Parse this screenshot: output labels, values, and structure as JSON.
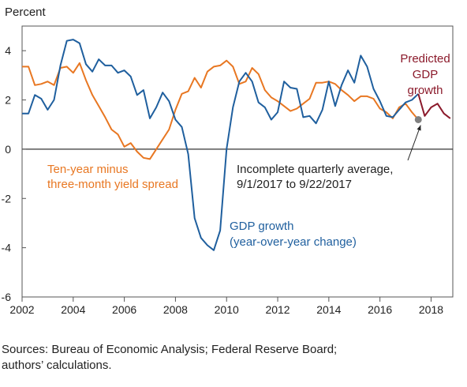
{
  "chart_data": {
    "type": "line",
    "ylabel": "Percent",
    "xlim": [
      2002.0,
      2018.85
    ],
    "ylim": [
      -6,
      5
    ],
    "yticks": [
      4,
      2,
      0,
      -2,
      -4,
      -6
    ],
    "ytick_labels": [
      "4",
      "2",
      "0",
      "-2",
      "-4",
      "-6"
    ],
    "xticks": [
      2002,
      2004,
      2006,
      2008,
      2010,
      2012,
      2014,
      2016,
      2018
    ],
    "xtick_labels": [
      "2002",
      "2004",
      "2006",
      "2008",
      "2010",
      "2012",
      "2014",
      "2016",
      "2018"
    ],
    "grid": false,
    "series": [
      {
        "name": "Ten-year minus three-month yield spread",
        "color": "#e87722",
        "x": [
          2002.0,
          2002.25,
          2002.5,
          2002.75,
          2003.0,
          2003.25,
          2003.5,
          2003.75,
          2004.0,
          2004.25,
          2004.5,
          2004.75,
          2005.0,
          2005.25,
          2005.5,
          2005.75,
          2006.0,
          2006.25,
          2006.5,
          2006.75,
          2007.0,
          2007.25,
          2007.5,
          2007.75,
          2008.0,
          2008.25,
          2008.5,
          2008.75,
          2009.0,
          2009.25,
          2009.5,
          2009.75,
          2010.0,
          2010.25,
          2010.5,
          2010.75,
          2011.0,
          2011.25,
          2011.5,
          2011.75,
          2012.0,
          2012.25,
          2012.5,
          2012.75,
          2013.0,
          2013.25,
          2013.5,
          2013.75,
          2014.0,
          2014.25,
          2014.5,
          2014.75,
          2015.0,
          2015.25,
          2015.5,
          2015.75,
          2016.0,
          2016.25,
          2016.5,
          2016.75,
          2017.0,
          2017.25,
          2017.5
        ],
        "values": [
          3.35,
          3.35,
          2.6,
          2.65,
          2.75,
          2.6,
          3.3,
          3.35,
          3.1,
          3.5,
          2.8,
          2.2,
          1.75,
          1.3,
          0.8,
          0.6,
          0.1,
          0.25,
          -0.1,
          -0.35,
          -0.4,
          0.0,
          0.4,
          0.8,
          1.6,
          2.25,
          2.35,
          2.9,
          2.5,
          3.15,
          3.35,
          3.4,
          3.6,
          3.35,
          2.65,
          2.75,
          3.3,
          3.05,
          2.4,
          2.1,
          1.95,
          1.75,
          1.55,
          1.65,
          1.85,
          2.05,
          2.7,
          2.7,
          2.75,
          2.65,
          2.4,
          2.2,
          1.95,
          2.15,
          2.15,
          2.05,
          1.65,
          1.5,
          1.25,
          1.7,
          1.85,
          1.5,
          1.2
        ]
      },
      {
        "name": "GDP growth (year-over-year change)",
        "color": "#1f5f9e",
        "x": [
          2002.0,
          2002.25,
          2002.5,
          2002.75,
          2003.0,
          2003.25,
          2003.5,
          2003.75,
          2004.0,
          2004.25,
          2004.5,
          2004.75,
          2005.0,
          2005.25,
          2005.5,
          2005.75,
          2006.0,
          2006.25,
          2006.5,
          2006.75,
          2007.0,
          2007.25,
          2007.5,
          2007.75,
          2008.0,
          2008.25,
          2008.5,
          2008.75,
          2009.0,
          2009.25,
          2009.5,
          2009.75,
          2010.0,
          2010.25,
          2010.5,
          2010.75,
          2011.0,
          2011.25,
          2011.5,
          2011.75,
          2012.0,
          2012.25,
          2012.5,
          2012.75,
          2013.0,
          2013.25,
          2013.5,
          2013.75,
          2014.0,
          2014.25,
          2014.5,
          2014.75,
          2015.0,
          2015.25,
          2015.5,
          2015.75,
          2016.0,
          2016.25,
          2016.5,
          2016.75,
          2017.0,
          2017.25,
          2017.5
        ],
        "values": [
          1.45,
          1.45,
          2.2,
          2.05,
          1.6,
          2.0,
          3.4,
          4.4,
          4.45,
          4.3,
          3.45,
          3.15,
          3.65,
          3.4,
          3.4,
          3.1,
          3.2,
          2.95,
          2.2,
          2.4,
          1.25,
          1.7,
          2.3,
          1.95,
          1.2,
          0.9,
          -0.2,
          -2.8,
          -3.6,
          -3.9,
          -4.1,
          -3.3,
          0.0,
          1.7,
          2.75,
          3.1,
          2.75,
          1.9,
          1.7,
          1.2,
          1.5,
          2.75,
          2.5,
          2.45,
          1.3,
          1.35,
          1.05,
          1.6,
          2.75,
          1.75,
          2.6,
          3.2,
          2.7,
          3.8,
          3.35,
          2.45,
          1.95,
          1.35,
          1.3,
          1.6,
          1.9,
          2.0,
          2.25
        ]
      },
      {
        "name": "Predicted GDP growth",
        "color": "#8b1a2b",
        "x": [
          2017.5,
          2017.75,
          2018.0,
          2018.25,
          2018.5,
          2018.75
        ],
        "values": [
          2.25,
          1.35,
          1.7,
          1.85,
          1.45,
          1.25
        ]
      }
    ],
    "marker": {
      "x": 2017.5,
      "y": 1.2,
      "color": "#808080"
    },
    "annotations": {
      "spread": [
        "Ten-year minus",
        "three-month yield spread"
      ],
      "gdp": [
        "GDP growth",
        "(year-over-year change)"
      ],
      "predicted": [
        "Predicted",
        "GDP",
        "growth"
      ],
      "incomplete": [
        "Incomplete quarterly average,",
        "9/1/2017 to 9/22/2017"
      ]
    }
  },
  "source_lines": [
    "Sources: Bureau of Economic Analysis; Federal Reserve Board;",
    "authors’ calculations."
  ]
}
